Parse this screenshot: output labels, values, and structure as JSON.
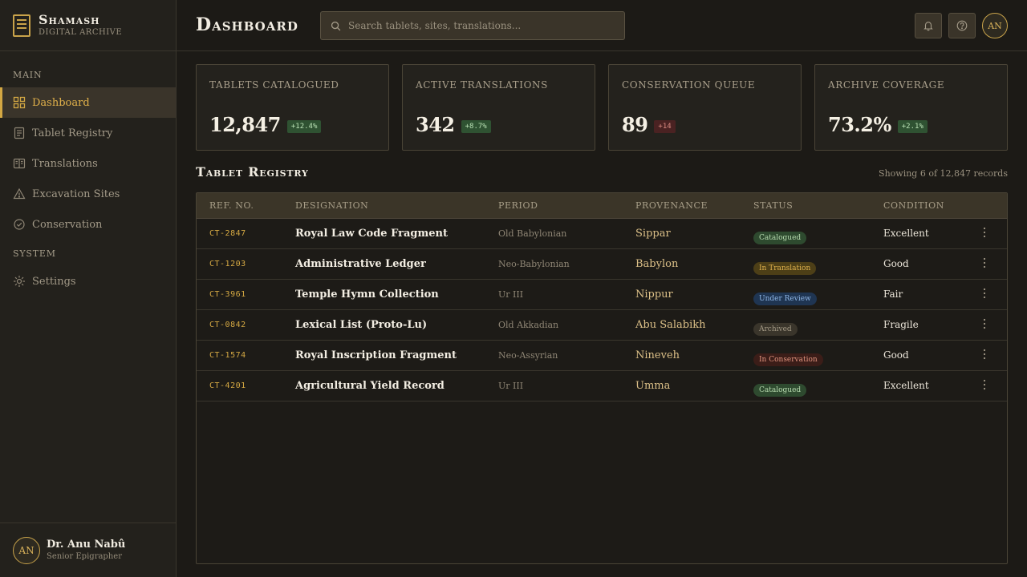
{
  "brand": {
    "name": "Shamash",
    "subtitle": "Digital Archive"
  },
  "sidebar": {
    "sections": [
      {
        "title": "Main"
      },
      {
        "title": "System"
      }
    ],
    "items": [
      {
        "label": "Dashboard",
        "icon": "grid-icon",
        "active": true
      },
      {
        "label": "Tablet Registry",
        "icon": "tablet-icon"
      },
      {
        "label": "Translations",
        "icon": "book-icon"
      },
      {
        "label": "Excavation Sites",
        "icon": "triangle-icon"
      },
      {
        "label": "Conservation",
        "icon": "check-circle-icon"
      },
      {
        "label": "Settings",
        "icon": "gear-icon"
      }
    ]
  },
  "user": {
    "initials": "AN",
    "name": "Dr. Anu Nabû",
    "role": "Senior Epigrapher"
  },
  "header": {
    "title": "Dashboard",
    "search_placeholder": "Search tablets, sites, translations...",
    "avatar_initials": "AN"
  },
  "stats": [
    {
      "label": "Tablets Catalogued",
      "value": "12,847",
      "delta": "+12.4%",
      "trend": "up"
    },
    {
      "label": "Active Translations",
      "value": "342",
      "delta": "+8.7%",
      "trend": "up"
    },
    {
      "label": "Conservation Queue",
      "value": "89",
      "delta": "+14",
      "trend": "down"
    },
    {
      "label": "Archive Coverage",
      "value": "73.2%",
      "delta": "+2.1%",
      "trend": "up"
    }
  ],
  "registry": {
    "title": "Tablet Registry",
    "count_text": "Showing 6 of 12,847 records",
    "columns": [
      "Ref. No.",
      "Designation",
      "Period",
      "Provenance",
      "Status",
      "Condition"
    ],
    "rows": [
      {
        "ref": "CT-2847",
        "designation": "Royal Law Code Fragment",
        "period": "Old Babylonian",
        "provenance": "Sippar",
        "status": "Catalogued",
        "condition": "Excellent"
      },
      {
        "ref": "CT-1203",
        "designation": "Administrative Ledger",
        "period": "Neo-Babylonian",
        "provenance": "Babylon",
        "status": "In Translation",
        "condition": "Good"
      },
      {
        "ref": "CT-3961",
        "designation": "Temple Hymn Collection",
        "period": "Ur III",
        "provenance": "Nippur",
        "status": "Under Review",
        "condition": "Fair"
      },
      {
        "ref": "CT-0842",
        "designation": "Lexical List (Proto-Lu)",
        "period": "Old Akkadian",
        "provenance": "Abu Salabikh",
        "status": "Archived",
        "condition": "Fragile"
      },
      {
        "ref": "CT-1574",
        "designation": "Royal Inscription Fragment",
        "period": "Neo-Assyrian",
        "provenance": "Nineveh",
        "status": "In Conservation",
        "condition": "Good"
      },
      {
        "ref": "CT-4201",
        "designation": "Agricultural Yield Record",
        "period": "Ur III",
        "provenance": "Umma",
        "status": "Catalogued",
        "condition": "Excellent"
      }
    ]
  },
  "colors": {
    "accent": "#d4a843",
    "background": "#1c1a16",
    "panel": "#24221d"
  }
}
